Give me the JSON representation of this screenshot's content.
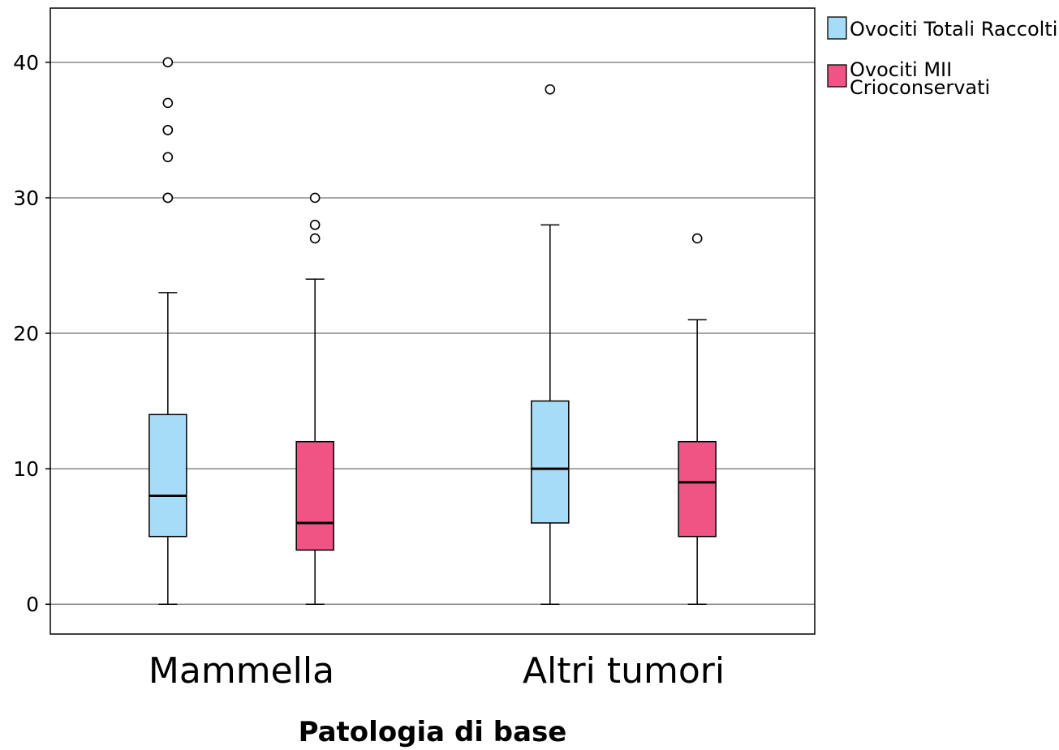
{
  "chart_data": {
    "type": "boxplot",
    "title": "",
    "xlabel": "Patologia di base",
    "ylabel": "",
    "ylim": [
      -2.2,
      44
    ],
    "yticks": [
      0,
      10,
      20,
      30,
      40
    ],
    "grid": true,
    "legend_position": "top-right, outside plot",
    "categories": [
      "Mammella",
      "Altri tumori"
    ],
    "series": [
      {
        "name": "Ovociti Totali Raccolti",
        "color": "#a6dcf7",
        "boxes": [
          {
            "category": "Mammella",
            "whisker_low": 0,
            "q1": 5,
            "median": 8,
            "q3": 14,
            "whisker_high": 23,
            "outliers": [
              30,
              30,
              33,
              35,
              35,
              37,
              40
            ]
          },
          {
            "category": "Altri tumori",
            "whisker_low": 0,
            "q1": 6,
            "median": 10,
            "q3": 15,
            "whisker_high": 28,
            "outliers": [
              38
            ]
          }
        ]
      },
      {
        "name": "Ovociti MII Crioconservati",
        "name_lines": [
          "Ovociti MII",
          "Crioconservati"
        ],
        "color": "#f05485",
        "boxes": [
          {
            "category": "Mammella",
            "whisker_low": 0,
            "q1": 4,
            "median": 6,
            "q3": 12,
            "whisker_high": 24,
            "outliers": [
              27,
              28,
              30
            ]
          },
          {
            "category": "Altri tumori",
            "whisker_low": 0,
            "q1": 5,
            "median": 9,
            "q3": 12,
            "whisker_high": 21,
            "outliers": [
              27
            ]
          }
        ]
      }
    ]
  }
}
